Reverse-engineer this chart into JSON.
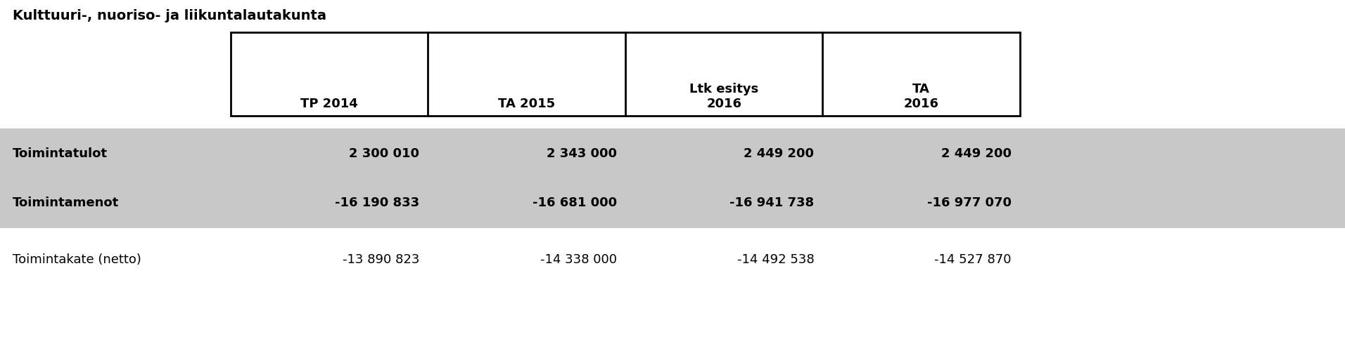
{
  "title": "Kulttuuri-, nuoriso- ja liikuntalautakunta",
  "col_headers": [
    "TP 2014",
    "TA 2015",
    "Ltk esitys\n2016",
    "TA\n2016"
  ],
  "rows": [
    {
      "label": "Toimintatulot",
      "values": [
        "2 300 010",
        "2 343 000",
        "2 449 200",
        "2 449 200"
      ],
      "bold": true,
      "bg": "#c8c8c8"
    },
    {
      "label": "Toimintamenot",
      "values": [
        "-16 190 833",
        "-16 681 000",
        "-16 941 738",
        "-16 977 070"
      ],
      "bold": true,
      "bg": "#c8c8c8"
    },
    {
      "label": "Toimintakate (netto)",
      "values": [
        "-13 890 823",
        "-14 338 000",
        "-14 492 538",
        "-14 527 870"
      ],
      "bold": false,
      "bg": "#ffffff"
    }
  ],
  "font_size": 13,
  "title_font_size": 14
}
